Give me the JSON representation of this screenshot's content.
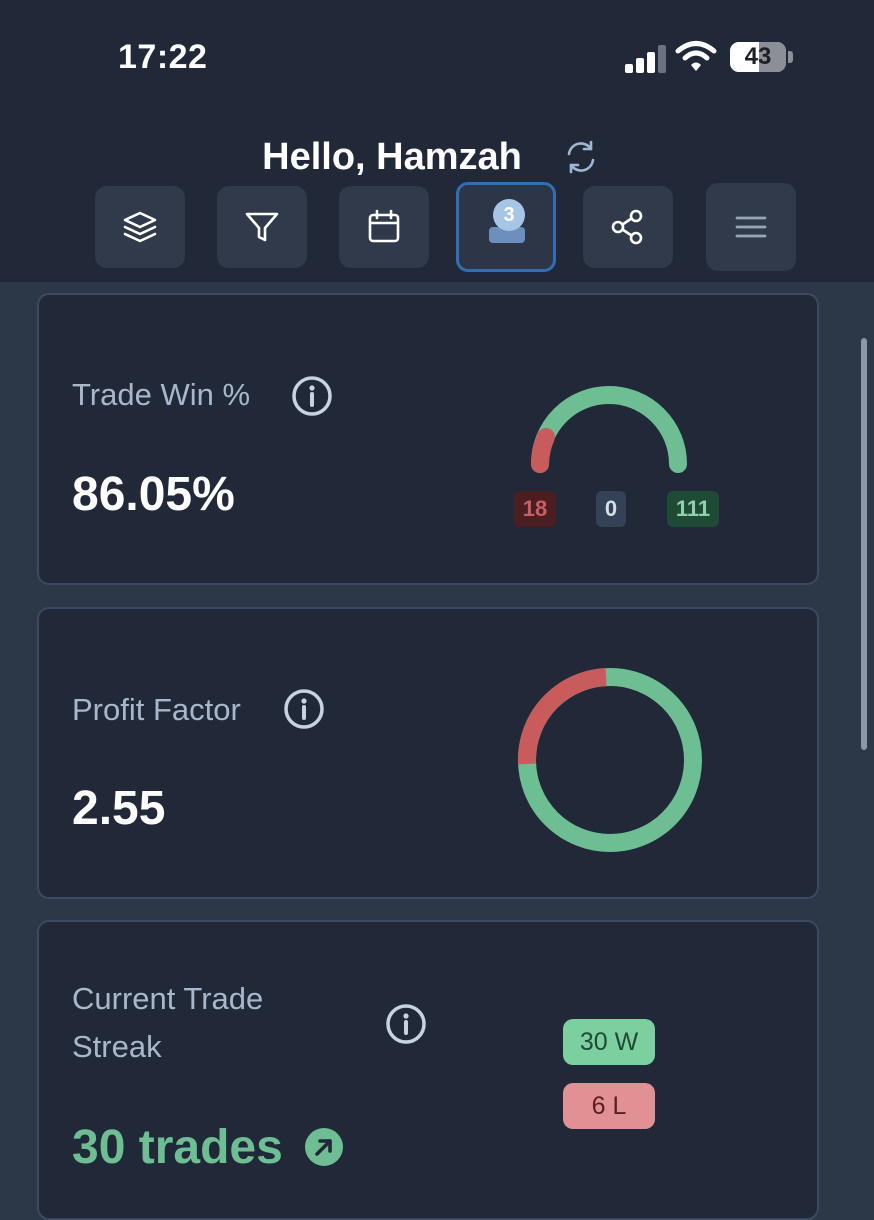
{
  "status_bar": {
    "time": "17:22",
    "battery": "43",
    "battery_level": 0.43
  },
  "header": {
    "greeting": "Hello, Hamzah",
    "notification_count": "3"
  },
  "toolbar": {
    "buttons": [
      {
        "icon": "layers-icon"
      },
      {
        "icon": "filter-icon"
      },
      {
        "icon": "calendar-icon"
      },
      {
        "icon": "accounts-icon",
        "active": true
      },
      {
        "icon": "share-icon"
      },
      {
        "icon": "menu-icon"
      }
    ]
  },
  "cards": {
    "win": {
      "label": "Trade Win %",
      "value": "86.05%",
      "losses": "18",
      "breakeven": "0",
      "wins": "111"
    },
    "profit_factor": {
      "label": "Profit Factor",
      "value": "2.55"
    },
    "streak": {
      "label": "Current Trade Streak",
      "value": "30 trades",
      "win_streak": "30 W",
      "loss_streak": "6 L"
    }
  },
  "colors": {
    "win": "#6dbf93",
    "loss": "#c95b5d",
    "background": "#2c3748",
    "card": "#212938",
    "accent": "#2f6fb6"
  }
}
